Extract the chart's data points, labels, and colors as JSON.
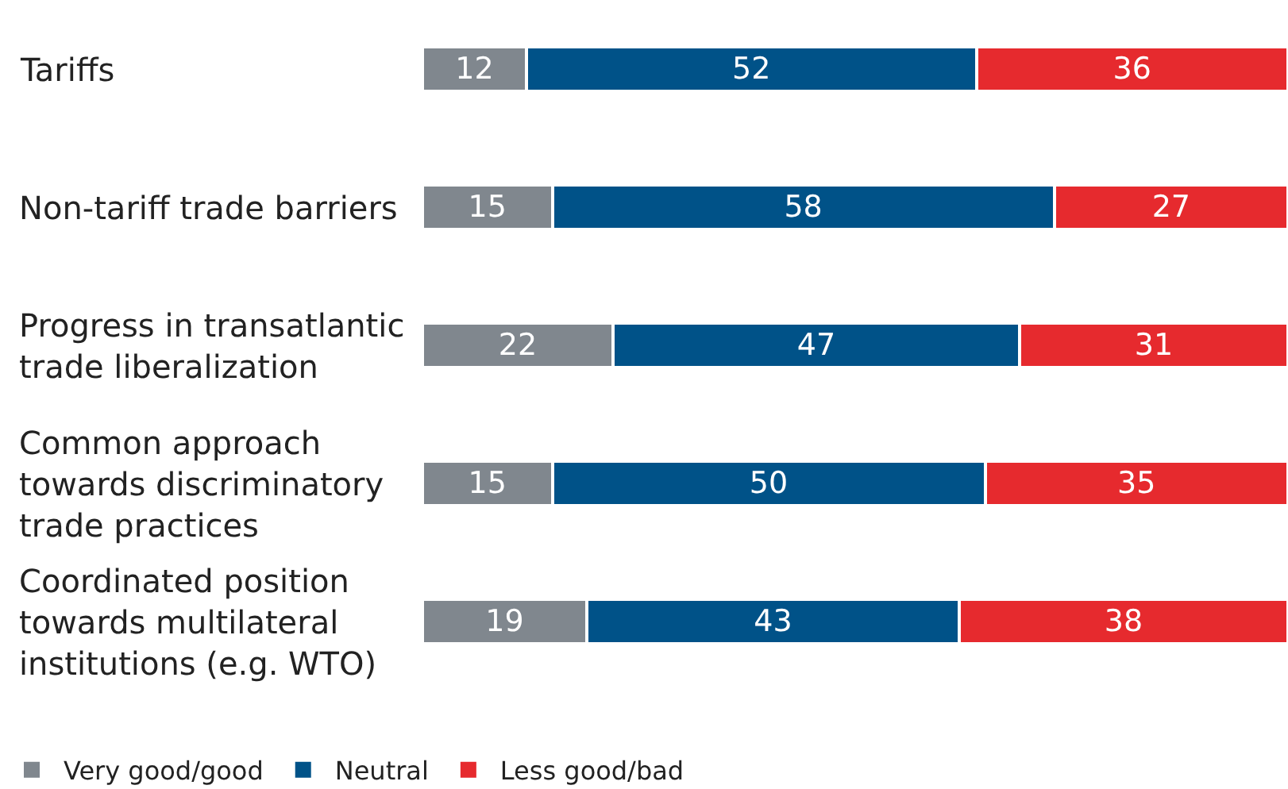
{
  "chart_data": {
    "type": "bar",
    "orientation": "horizontal",
    "stacked": true,
    "categories": [
      "Tariffs",
      "Non-tariff trade barriers",
      "Progress in transatlantic\ntrade liberalization",
      "Common approach\ntowards discriminatory\ntrade practices",
      "Coordinated position\ntowards multilateral\ninstitutions (e.g. WTO)"
    ],
    "series": [
      {
        "name": "Very good/good",
        "color": "#80878e",
        "values": [
          12,
          15,
          22,
          15,
          19
        ]
      },
      {
        "name": "Neutral",
        "color": "#005288",
        "values": [
          52,
          58,
          47,
          50,
          43
        ]
      },
      {
        "name": "Less good/bad",
        "color": "#e62a2e",
        "values": [
          36,
          27,
          31,
          35,
          38
        ]
      }
    ],
    "xlim": [
      0,
      100
    ],
    "data_labels": true,
    "legend": "bottom left",
    "tick_labels": "y"
  }
}
